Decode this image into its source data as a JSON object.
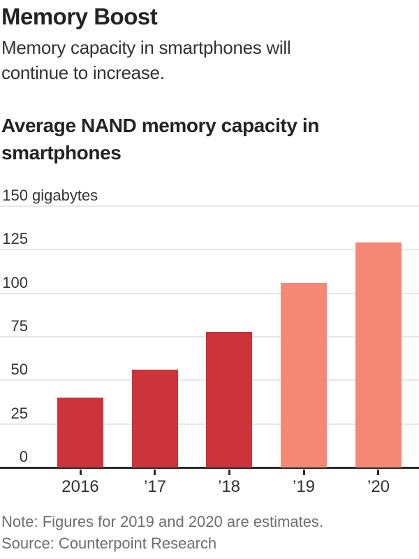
{
  "header": {
    "title": "Memory Boost",
    "subtitle_line1": "Memory capacity in smartphones will",
    "subtitle_line2": "continue to increase."
  },
  "chart": {
    "title_line1": "Average NAND memory capacity in",
    "title_line2": "smartphones"
  },
  "chart_data": {
    "type": "bar",
    "title": "Average NAND memory capacity in smartphones",
    "xlabel": "",
    "ylabel": "gigabytes",
    "categories": [
      "2016",
      "’17",
      "’18",
      "’19",
      "’20"
    ],
    "values": [
      40,
      56,
      78,
      106,
      129
    ],
    "estimated": [
      false,
      false,
      false,
      true,
      true
    ],
    "ylim": [
      0,
      150
    ],
    "yticks": [
      0,
      25,
      50,
      75,
      100,
      125,
      150
    ],
    "ytick_unit_label": "gigabytes",
    "grid": true,
    "legend": "none",
    "colors": {
      "actual": "#cd333a",
      "estimate": "#f48875",
      "gridline": "#e7e7e7",
      "axis": "#2b2b2b",
      "text": "#333333",
      "footer_text": "#6e6e6e"
    }
  },
  "footer": {
    "note": "Note: Figures for 2019 and 2020 are estimates.",
    "source": "Source: Counterpoint Research"
  }
}
